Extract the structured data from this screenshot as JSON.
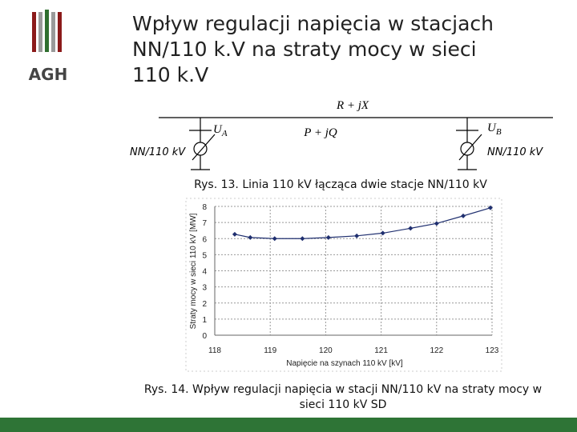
{
  "header": {
    "logo": "AGH",
    "title_lines": [
      "Wpływ regulacji napięcia w stacjach",
      "NN/110 k.V na straty mocy w sieci",
      "110 k.V"
    ]
  },
  "diagram": {
    "impedance": "R + jX",
    "power": "P + jQ",
    "ua": {
      "main": "U",
      "sub": "A"
    },
    "ub": {
      "main": "U",
      "sub": "B"
    },
    "station_left": "NN/110 kV",
    "station_right": "NN/110 kV",
    "caption": "Rys. 13. Linia 110 kV łącząca dwie stacje NN/110 kV"
  },
  "chart_data": {
    "type": "line",
    "ylabel": "Straty mocy w sieci 110 kV [MW]",
    "xlabel": "Napięcie na szynach 110 kV [kV]",
    "x": [
      118.36,
      118.64,
      119.08,
      119.58,
      120.05,
      120.56,
      121.03,
      121.53,
      122.0,
      122.48,
      122.97
    ],
    "series": [
      {
        "color": "#1f2f6f",
        "values": [
          6.27,
          6.07,
          6.0,
          6.0,
          6.07,
          6.17,
          6.34,
          6.64,
          6.94,
          7.41,
          7.91
        ]
      }
    ],
    "xlim": [
      118,
      123
    ],
    "ylim": [
      0,
      8
    ],
    "xticks": [
      118,
      119,
      120,
      121,
      122,
      123
    ],
    "yticks": [
      0,
      1,
      2,
      3,
      4,
      5,
      6,
      7,
      8
    ],
    "grid": true
  },
  "caption": {
    "lines": [
      "Rys. 14. Wpływ regulacji napięcia w stacji NN/110 kV na straty mocy w",
      "sieci 110 kV SD"
    ]
  }
}
